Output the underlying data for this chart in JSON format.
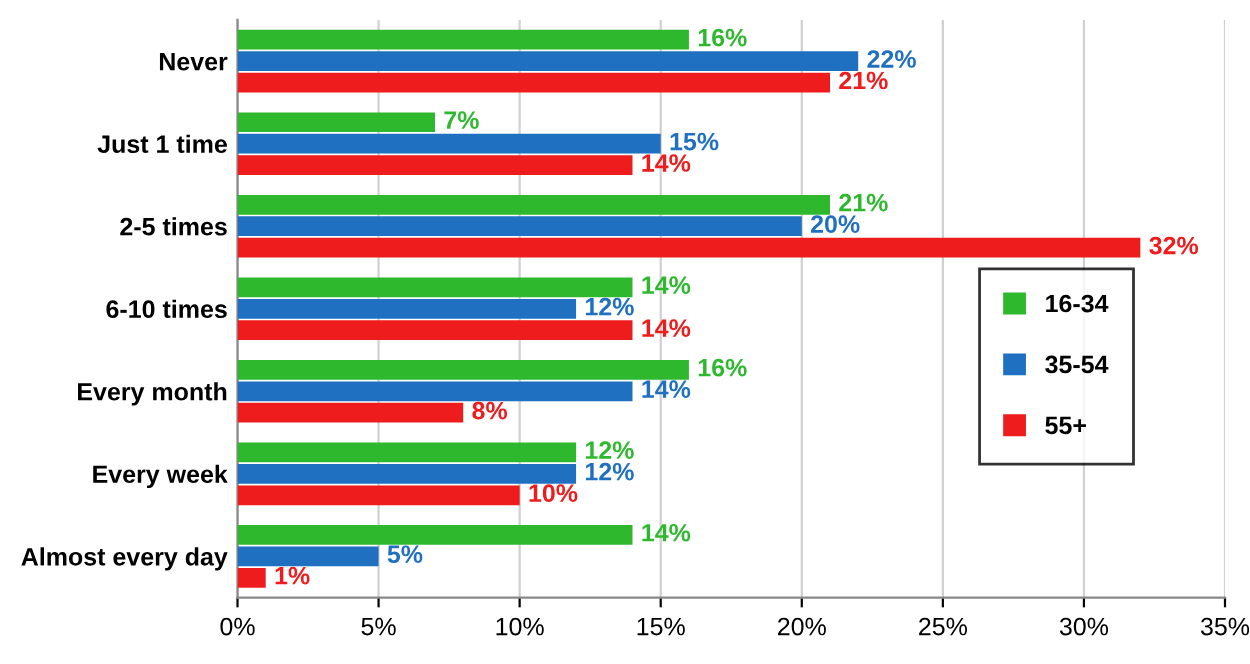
{
  "chart_data": {
    "type": "bar",
    "orientation": "horizontal",
    "categories": [
      "Never",
      "Just 1 time",
      "2-5 times",
      "6-10 times",
      "Every month",
      "Every week",
      "Almost every day"
    ],
    "series": [
      {
        "name": "16-34",
        "color": "#2eb82e",
        "values": [
          16,
          7,
          21,
          14,
          16,
          12,
          14
        ],
        "value_labels": [
          "16%",
          "7%",
          "21%",
          "14%",
          "16%",
          "12%",
          "14%"
        ]
      },
      {
        "name": "35-54",
        "color": "#1f70c1",
        "values": [
          22,
          15,
          20,
          12,
          14,
          12,
          5
        ],
        "value_labels": [
          "22%",
          "15%",
          "20%",
          "12%",
          "14%",
          "12%",
          "5%"
        ]
      },
      {
        "name": "55+",
        "color": "#ee1c1c",
        "values": [
          21,
          14,
          32,
          14,
          8,
          10,
          1
        ],
        "value_labels": [
          "21%",
          "14%",
          "32%",
          "14%",
          "8%",
          "10%",
          "1%"
        ]
      }
    ],
    "xlim": [
      0,
      35
    ],
    "xticks": [
      {
        "value": 0,
        "label": "0%"
      },
      {
        "value": 5,
        "label": "5%"
      },
      {
        "value": 10,
        "label": "10%"
      },
      {
        "value": 15,
        "label": "15%"
      },
      {
        "value": 20,
        "label": "20%"
      },
      {
        "value": 25,
        "label": "25%"
      },
      {
        "value": 30,
        "label": "30%"
      },
      {
        "value": 35,
        "label": "35%"
      }
    ],
    "grid": "x",
    "legend": "right"
  }
}
